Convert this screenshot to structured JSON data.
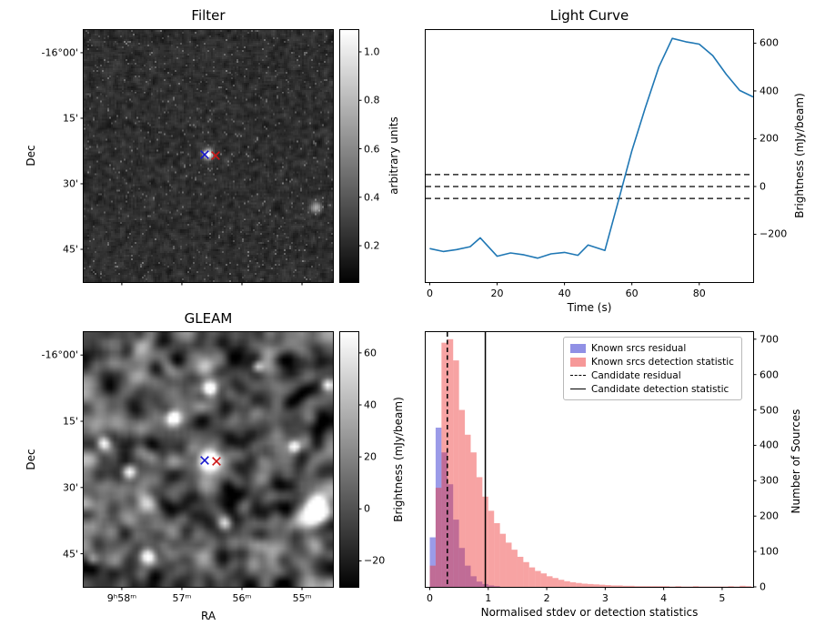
{
  "figure": {
    "background": "#ffffff"
  },
  "panels": {
    "filter": {
      "title": "Filter",
      "ylabel": "Dec",
      "dec_ticks": [
        "-16°00'",
        "15'",
        "30'",
        "45'"
      ],
      "markers": [
        {
          "name": "candidate-x",
          "shape": "x",
          "color": "#1515cc"
        },
        {
          "name": "catalog-x",
          "shape": "x",
          "color": "#cc1515"
        }
      ],
      "colorbar": {
        "label": "arbitrary units",
        "ticks": [
          "0.2",
          "0.4",
          "0.6",
          "0.8",
          "1.0"
        ]
      }
    },
    "light_curve": {
      "title": "Light Curve",
      "xlabel": "Time (s)",
      "ylabel": "Brightness (mJy/beam)",
      "xticks": [
        "0",
        "20",
        "40",
        "60",
        "80"
      ],
      "yticks": [
        "−200",
        "0",
        "200",
        "400",
        "600"
      ]
    },
    "gleam": {
      "title": "GLEAM",
      "xlabel": "RA",
      "ylabel": "Dec",
      "dec_ticks": [
        "-16°00'",
        "15'",
        "30'",
        "45'"
      ],
      "ra_ticks": [
        "9ʰ58ᵐ",
        "57ᵐ",
        "56ᵐ",
        "55ᵐ"
      ],
      "colorbar": {
        "label": "Brightness (mJy/beam)",
        "ticks": [
          "−20",
          "0",
          "20",
          "40",
          "60"
        ]
      }
    },
    "histogram": {
      "xlabel": "Normalised stdev or detection statistics",
      "ylabel": "Number of Sources",
      "xticks": [
        "0",
        "1",
        "2",
        "3",
        "4",
        "5"
      ],
      "yticks": [
        "0",
        "100",
        "200",
        "300",
        "400",
        "500",
        "600",
        "700"
      ],
      "legend": [
        {
          "label": "Known srcs residual",
          "type": "patch",
          "color": "#9090e5"
        },
        {
          "label": "Known srcs detection statistic",
          "type": "patch",
          "color": "#f69898"
        },
        {
          "label": "Candidate residual",
          "type": "dashed-line",
          "color": "#000000"
        },
        {
          "label": "Candidate detection statistic",
          "type": "solid-line",
          "color": "#000000"
        }
      ]
    }
  },
  "chart_data": [
    {
      "type": "heatmap",
      "title": "Filter",
      "ylabel": "Dec",
      "yticks": [
        "-16°00'",
        "15'",
        "30'",
        "45'"
      ],
      "colorbar_label": "arbitrary units",
      "colorbar_range": [
        0.05,
        1.09
      ],
      "colorbar_ticks": [
        0.2,
        0.4,
        0.6,
        0.8,
        1.0
      ],
      "description": "Grayscale noise map; compact bright source at approx RA 9h56.5m, Dec -16°24' marked with blue X (candidate) and red X (catalog); fainter source lower right.",
      "markers": [
        {
          "label": "candidate position",
          "color": "blue",
          "ra": "9h56.5m",
          "dec": "-16°24'"
        },
        {
          "label": "catalog position",
          "color": "red",
          "ra": "9h56.4m",
          "dec": "-16°24'"
        }
      ]
    },
    {
      "type": "line",
      "title": "Light Curve",
      "xlabel": "Time (s)",
      "ylabel": "Brightness (mJy/beam)",
      "line_color": "#1f77b4",
      "x": [
        0,
        4,
        8,
        12,
        15,
        20,
        24,
        28,
        32,
        36,
        40,
        44,
        47,
        52,
        56,
        60,
        64,
        68,
        72,
        76,
        80,
        84,
        88,
        92,
        96
      ],
      "y": [
        -260,
        -272,
        -264,
        -252,
        -215,
        -292,
        -278,
        -286,
        -300,
        -282,
        -276,
        -288,
        -245,
        -268,
        -60,
        150,
        330,
        500,
        620,
        606,
        596,
        548,
        470,
        402,
        375
      ],
      "threshold_lines": [
        50,
        0,
        -50
      ],
      "threshold_style": "black dashed",
      "xlim": [
        -1.2,
        96
      ],
      "ylim": [
        -400,
        655
      ],
      "xtick_values": [
        0,
        20,
        40,
        60,
        80
      ],
      "ytick_values": [
        -200,
        0,
        200,
        400,
        600
      ]
    },
    {
      "type": "heatmap",
      "title": "GLEAM",
      "xlabel": "RA",
      "ylabel": "Dec",
      "xticks": [
        "9h58m",
        "57m",
        "56m",
        "55m"
      ],
      "yticks": [
        "-16°00'",
        "15'",
        "30'",
        "45'"
      ],
      "colorbar_label": "Brightness (mJy/beam)",
      "colorbar_range": [
        -30,
        68
      ],
      "colorbar_ticks": [
        -20,
        0,
        20,
        40,
        60
      ],
      "description": "Smoothed GLEAM radio image with several bright sources; source at approx RA 9h56.5m, Dec -16°24' marked with blue and red X; brightest extended source at lower right."
    },
    {
      "type": "histogram",
      "xlabel": "Normalised stdev or detection statistics",
      "ylabel": "Number of Sources",
      "bin_start": 0,
      "bin_width": 0.1,
      "xlim": [
        -0.07,
        5.53
      ],
      "ylim": [
        0,
        720
      ],
      "xtick_values": [
        0,
        1,
        2,
        3,
        4,
        5
      ],
      "ytick_values": [
        0,
        100,
        200,
        300,
        400,
        500,
        600,
        700
      ],
      "legend_position": "upper right",
      "series": [
        {
          "name": "Known srcs residual",
          "color": "#2222cc",
          "alpha": 0.45,
          "counts": [
            140,
            450,
            380,
            290,
            190,
            110,
            60,
            30,
            15,
            8,
            4,
            2,
            0,
            0,
            0,
            0,
            0,
            0,
            0,
            0,
            0,
            0,
            0,
            0,
            0,
            0,
            0,
            0,
            0,
            0,
            0,
            0,
            0,
            0,
            0,
            0,
            0,
            0,
            0,
            0,
            0,
            0,
            0,
            0,
            0,
            0,
            0,
            0,
            0,
            0,
            0,
            0,
            0,
            0,
            0
          ]
        },
        {
          "name": "Known srcs detection statistic",
          "color": "#ee3333",
          "alpha": 0.45,
          "counts": [
            60,
            280,
            690,
            700,
            640,
            500,
            430,
            380,
            310,
            255,
            215,
            180,
            150,
            125,
            105,
            85,
            70,
            55,
            45,
            38,
            30,
            25,
            20,
            16,
            13,
            11,
            9,
            8,
            7,
            6,
            5,
            4,
            4,
            3,
            3,
            2,
            2,
            2,
            2,
            2,
            2,
            1,
            2,
            1,
            1,
            2,
            1,
            1,
            1,
            1,
            1,
            2,
            1,
            3,
            2
          ]
        }
      ],
      "vlines": [
        {
          "name": "Candidate residual",
          "x": 0.3,
          "style": "dashed",
          "color": "#000000"
        },
        {
          "name": "Candidate detection statistic",
          "x": 0.95,
          "style": "solid",
          "color": "#000000"
        }
      ]
    }
  ]
}
